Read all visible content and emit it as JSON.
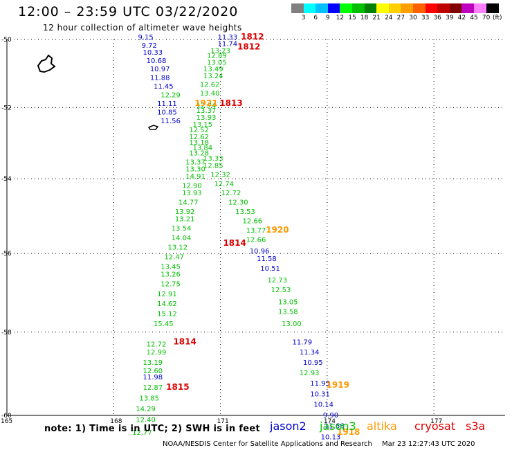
{
  "header": {
    "title": "12:00 – 23:59 UTC 03/22/2020",
    "subtitle": "12 hour collection of altimeter wave heights"
  },
  "color_scale": {
    "unit": "(ft)",
    "labels": [
      "3",
      "6",
      "9",
      "12",
      "15",
      "18",
      "21",
      "24",
      "27",
      "30",
      "33",
      "36",
      "39",
      "42",
      "45",
      "70"
    ],
    "colors": [
      "#808080",
      "#00ffff",
      "#00c0ff",
      "#0000ff",
      "#00ff00",
      "#00c000",
      "#008000",
      "#ffff00",
      "#ffd000",
      "#ffa000",
      "#ff6000",
      "#ff0000",
      "#c00000",
      "#800000",
      "#c000c0",
      "#ff80ff",
      "#000000"
    ]
  },
  "chart_data": {
    "type": "map",
    "title": "12:00 – 23:59 UTC 03/22/2020",
    "subtitle": "12 hour collection of altimeter wave heights",
    "lat_labels": [
      "-50",
      "-52",
      "-54",
      "-56",
      "-58",
      "-60"
    ],
    "lon_labels": [
      "165",
      "168",
      "171",
      "174",
      "177"
    ],
    "grid": true,
    "satellite_colors": {
      "jason2": "#0000cc",
      "jason3": "#00c000",
      "altika": "#ff9900",
      "cryosat": "#dd0000",
      "s3a": "#dd0000"
    },
    "series": [
      {
        "name": "jason2",
        "values": [
          {
            "lon": 168.9,
            "lat": -50.0,
            "v": "9.15"
          },
          {
            "lon": 169.0,
            "lat": -50.25,
            "v": "9.72"
          },
          {
            "lon": 169.1,
            "lat": -50.45,
            "v": "10.33"
          },
          {
            "lon": 169.2,
            "lat": -50.7,
            "v": "10.68"
          },
          {
            "lon": 169.3,
            "lat": -50.95,
            "v": "10.97"
          },
          {
            "lon": 169.3,
            "lat": -51.2,
            "v": "11.88"
          },
          {
            "lon": 169.4,
            "lat": -51.45,
            "v": "11.45"
          },
          {
            "lon": 169.5,
            "lat": -51.95,
            "v": "11.11"
          },
          {
            "lon": 169.5,
            "lat": -52.2,
            "v": "10.85"
          },
          {
            "lon": 169.6,
            "lat": -52.45,
            "v": "11.56"
          },
          {
            "lon": 171.2,
            "lat": -50.0,
            "v": "11.33"
          },
          {
            "lon": 171.2,
            "lat": -50.2,
            "v": "11.74"
          },
          {
            "lon": 172.1,
            "lat": -56.0,
            "v": "10.96"
          },
          {
            "lon": 172.3,
            "lat": -56.2,
            "v": "11.58"
          },
          {
            "lon": 172.4,
            "lat": -56.45,
            "v": "10.51"
          },
          {
            "lon": 173.3,
            "lat": -58.3,
            "v": "11.79"
          },
          {
            "lon": 173.5,
            "lat": -58.55,
            "v": "11.34"
          },
          {
            "lon": 173.6,
            "lat": -58.8,
            "v": "10.95"
          },
          {
            "lon": 173.8,
            "lat": -59.3,
            "v": "11.95"
          },
          {
            "lon": 173.8,
            "lat": -59.55,
            "v": "10.31"
          },
          {
            "lon": 173.9,
            "lat": -59.8,
            "v": "10.14"
          },
          {
            "lon": 174.1,
            "lat": -60.05,
            "v": "9.90"
          },
          {
            "lon": 174.2,
            "lat": -60.3,
            "v": "11.66"
          },
          {
            "lon": 174.1,
            "lat": -60.55,
            "v": "10.13"
          },
          {
            "lon": 169.1,
            "lat": -59.15,
            "v": "11.98"
          }
        ]
      },
      {
        "name": "jason3",
        "values": [
          {
            "lon": 171.0,
            "lat": -50.4,
            "v": "13.23"
          },
          {
            "lon": 170.9,
            "lat": -50.55,
            "v": "12.89"
          },
          {
            "lon": 170.9,
            "lat": -50.75,
            "v": "13.05"
          },
          {
            "lon": 170.8,
            "lat": -50.95,
            "v": "13.49"
          },
          {
            "lon": 170.8,
            "lat": -51.15,
            "v": "13.24"
          },
          {
            "lon": 170.7,
            "lat": -51.4,
            "v": "12.62"
          },
          {
            "lon": 170.7,
            "lat": -51.65,
            "v": "13.40"
          },
          {
            "lon": 169.6,
            "lat": -51.7,
            "v": "12.29"
          },
          {
            "lon": 170.6,
            "lat": -52.0,
            "v": "12.74"
          },
          {
            "lon": 170.6,
            "lat": -52.15,
            "v": "13.37"
          },
          {
            "lon": 170.6,
            "lat": -52.35,
            "v": "13.93"
          },
          {
            "lon": 170.5,
            "lat": -52.55,
            "v": "13.15"
          },
          {
            "lon": 170.4,
            "lat": -52.7,
            "v": "12.52"
          },
          {
            "lon": 170.4,
            "lat": -52.9,
            "v": "12.62"
          },
          {
            "lon": 170.4,
            "lat": -53.05,
            "v": "13.18"
          },
          {
            "lon": 170.5,
            "lat": -53.2,
            "v": "13.84"
          },
          {
            "lon": 170.4,
            "lat": -53.35,
            "v": "13.28"
          },
          {
            "lon": 170.8,
            "lat": -53.5,
            "v": "13.33"
          },
          {
            "lon": 170.3,
            "lat": -53.6,
            "v": "13.37"
          },
          {
            "lon": 170.8,
            "lat": -53.7,
            "v": "12.85"
          },
          {
            "lon": 170.3,
            "lat": -53.8,
            "v": "13.30"
          },
          {
            "lon": 171.0,
            "lat": -53.95,
            "v": "12.32"
          },
          {
            "lon": 170.3,
            "lat": -54.0,
            "v": "14.91"
          },
          {
            "lon": 171.1,
            "lat": -54.2,
            "v": "12.74"
          },
          {
            "lon": 170.2,
            "lat": -54.25,
            "v": "12.90"
          },
          {
            "lon": 171.3,
            "lat": -54.45,
            "v": "12.72"
          },
          {
            "lon": 170.2,
            "lat": -54.45,
            "v": "13.93"
          },
          {
            "lon": 171.5,
            "lat": -54.7,
            "v": "12.30"
          },
          {
            "lon": 170.1,
            "lat": -54.7,
            "v": "14.77"
          },
          {
            "lon": 171.7,
            "lat": -54.95,
            "v": "13.53"
          },
          {
            "lon": 170.0,
            "lat": -54.95,
            "v": "13.92"
          },
          {
            "lon": 171.9,
            "lat": -55.2,
            "v": "12.66"
          },
          {
            "lon": 170.0,
            "lat": -55.15,
            "v": "13.21"
          },
          {
            "lon": 172.0,
            "lat": -55.45,
            "v": "13.77"
          },
          {
            "lon": 169.9,
            "lat": -55.4,
            "v": "13.54"
          },
          {
            "lon": 172.0,
            "lat": -55.7,
            "v": "12.66"
          },
          {
            "lon": 169.9,
            "lat": -55.65,
            "v": "14.04"
          },
          {
            "lon": 169.8,
            "lat": -55.9,
            "v": "13.12"
          },
          {
            "lon": 169.7,
            "lat": -56.15,
            "v": "12.47"
          },
          {
            "lon": 169.6,
            "lat": -56.4,
            "v": "13.45"
          },
          {
            "lon": 172.6,
            "lat": -56.75,
            "v": "12.73"
          },
          {
            "lon": 169.6,
            "lat": -56.6,
            "v": "13.26"
          },
          {
            "lon": 172.7,
            "lat": -57.0,
            "v": "12.53"
          },
          {
            "lon": 169.6,
            "lat": -56.85,
            "v": "12.75"
          },
          {
            "lon": 169.5,
            "lat": -57.1,
            "v": "12.91"
          },
          {
            "lon": 172.9,
            "lat": -57.3,
            "v": "13.05"
          },
          {
            "lon": 169.5,
            "lat": -57.35,
            "v": "14.62"
          },
          {
            "lon": 172.9,
            "lat": -57.55,
            "v": "13.58"
          },
          {
            "lon": 169.5,
            "lat": -57.6,
            "v": "15.12"
          },
          {
            "lon": 173.0,
            "lat": -57.85,
            "v": "13.00"
          },
          {
            "lon": 169.4,
            "lat": -57.85,
            "v": "15.45"
          },
          {
            "lon": 169.2,
            "lat": -58.35,
            "v": "12.72"
          },
          {
            "lon": 169.2,
            "lat": -58.55,
            "v": "12.99"
          },
          {
            "lon": 169.1,
            "lat": -58.8,
            "v": "13.19"
          },
          {
            "lon": 173.5,
            "lat": -59.05,
            "v": "12.93"
          },
          {
            "lon": 169.1,
            "lat": -59.0,
            "v": "12.60"
          },
          {
            "lon": 169.1,
            "lat": -59.4,
            "v": "12.87"
          },
          {
            "lon": 169.0,
            "lat": -59.65,
            "v": "13.85"
          },
          {
            "lon": 168.9,
            "lat": -59.9,
            "v": "14.29"
          },
          {
            "lon": 168.9,
            "lat": -60.15,
            "v": "12.40"
          },
          {
            "lon": 168.8,
            "lat": -60.45,
            "v": "12.77"
          }
        ]
      },
      {
        "name": "altika",
        "values": [
          {
            "lon": 170.6,
            "lat": -51.95,
            "v": "1921"
          },
          {
            "lon": 172.6,
            "lat": -55.45,
            "v": "1920"
          },
          {
            "lon": 174.3,
            "lat": -59.35,
            "v": "1919"
          },
          {
            "lon": 174.6,
            "lat": -60.45,
            "v": "1918"
          }
        ]
      },
      {
        "name": "cryosat",
        "values": [
          {
            "lon": 171.9,
            "lat": -50.0,
            "v": "1812"
          },
          {
            "lon": 171.8,
            "lat": -50.3,
            "v": "1812"
          },
          {
            "lon": 171.3,
            "lat": -51.95,
            "v": "1813"
          },
          {
            "lon": 171.4,
            "lat": -55.8,
            "v": "1814"
          },
          {
            "lon": 170.0,
            "lat": -58.3,
            "v": "1814"
          },
          {
            "lon": 169.8,
            "lat": -59.4,
            "v": "1815"
          }
        ]
      }
    ]
  },
  "legend": {
    "jason2": "jason2",
    "jason3": "jason3",
    "altika": "altika",
    "cryosat": "cryosat",
    "s3a": "s3a"
  },
  "footer": {
    "note": "note:  1) Time is in UTC;  2) SWH is in feet",
    "credit": "NOAA/NESDIS Center for Satellite Applications and Research",
    "timestamp": "Mar 23 12:27:43 UTC 2020"
  }
}
